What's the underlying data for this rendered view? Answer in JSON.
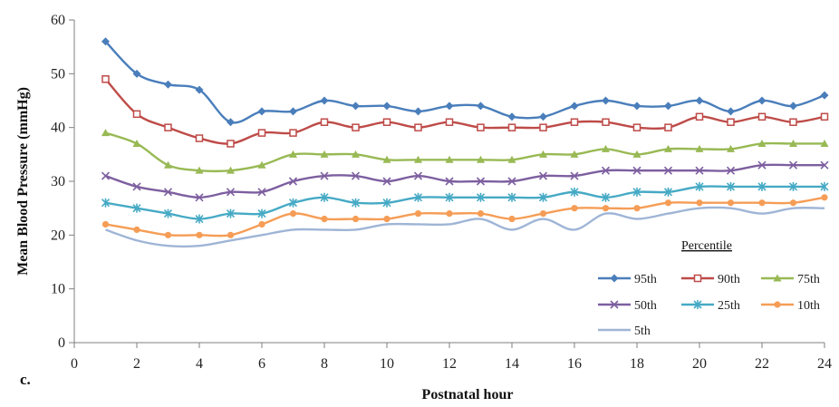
{
  "chart_data": {
    "type": "line",
    "panel_label": "c.",
    "xlabel": "Postnatal hour",
    "ylabel": "Mean Blood Pressure (mmHg)",
    "xlim": [
      0,
      24
    ],
    "ylim": [
      0,
      60
    ],
    "xticks": [
      0,
      2,
      4,
      6,
      8,
      10,
      12,
      14,
      16,
      18,
      20,
      22,
      24
    ],
    "yticks": [
      0,
      10,
      20,
      30,
      40,
      50,
      60
    ],
    "grid": false,
    "legend": {
      "title": "Percentile",
      "placement": "bottom-right"
    },
    "x": [
      1,
      2,
      3,
      4,
      5,
      6,
      7,
      8,
      9,
      10,
      11,
      12,
      13,
      14,
      15,
      16,
      17,
      18,
      19,
      20,
      21,
      22,
      23,
      24
    ],
    "series": [
      {
        "name": "95th",
        "color": "#4a7ebb",
        "marker": "diamond",
        "values": [
          56,
          50,
          48,
          47,
          41,
          43,
          43,
          45,
          44,
          44,
          43,
          44,
          44,
          42,
          42,
          44,
          45,
          44,
          44,
          45,
          43,
          45,
          44,
          46
        ]
      },
      {
        "name": "90th",
        "color": "#be4b48",
        "marker": "square",
        "values": [
          49,
          42.5,
          40,
          38,
          37,
          39,
          39,
          41,
          40,
          41,
          40,
          41,
          40,
          40,
          40,
          41,
          41,
          40,
          40,
          42,
          41,
          42,
          41,
          42
        ]
      },
      {
        "name": "75th",
        "color": "#98b954",
        "marker": "triangle",
        "values": [
          39,
          37,
          33,
          32,
          32,
          33,
          35,
          35,
          35,
          34,
          34,
          34,
          34,
          34,
          35,
          35,
          36,
          35,
          36,
          36,
          36,
          37,
          37,
          37
        ]
      },
      {
        "name": "50th",
        "color": "#7d5fa0",
        "marker": "x",
        "values": [
          31,
          29,
          28,
          27,
          28,
          28,
          30,
          31,
          31,
          30,
          31,
          30,
          30,
          30,
          31,
          31,
          32,
          32,
          32,
          32,
          32,
          33,
          33,
          33
        ]
      },
      {
        "name": "25th",
        "color": "#46aac5",
        "marker": "star",
        "values": [
          26,
          25,
          24,
          23,
          24,
          24,
          26,
          27,
          26,
          26,
          27,
          27,
          27,
          27,
          27,
          28,
          27,
          28,
          28,
          29,
          29,
          29,
          29,
          29
        ]
      },
      {
        "name": "10th",
        "color": "#f59d56",
        "marker": "circle",
        "values": [
          22,
          21,
          20,
          20,
          20,
          22,
          24,
          23,
          23,
          23,
          24,
          24,
          24,
          23,
          24,
          25,
          25,
          25,
          26,
          26,
          26,
          26,
          26,
          27
        ]
      },
      {
        "name": "5th",
        "color": "#9fb5d6",
        "marker": "none",
        "values": [
          21,
          19,
          18,
          18,
          19,
          20,
          21,
          21,
          21,
          22,
          22,
          22,
          23,
          21,
          23,
          21,
          24,
          23,
          24,
          25,
          25,
          24,
          25,
          25
        ]
      }
    ]
  }
}
